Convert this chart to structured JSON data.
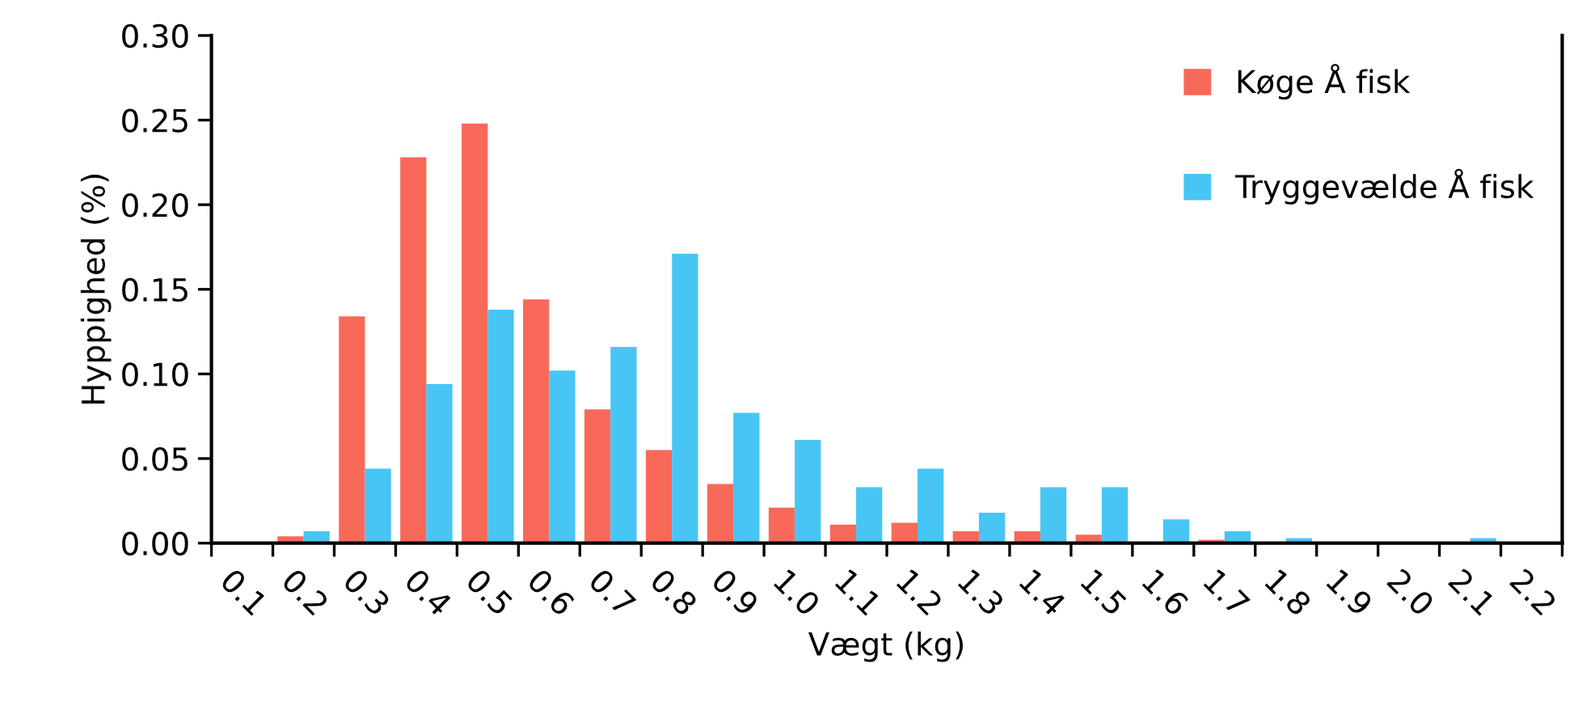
{
  "chart_data": {
    "type": "bar",
    "xlabel": "Vægt (kg)",
    "ylabel": "Hyppighed (%)",
    "categories": [
      "0.1",
      "0.2",
      "0.3",
      "0.4",
      "0.5",
      "0.6",
      "0.7",
      "0.8",
      "0.9",
      "1.0",
      "1.1",
      "1.2",
      "1.3",
      "1.4",
      "1.5",
      "1.6",
      "1.7",
      "1.8",
      "1.9",
      "2.0",
      "2.1",
      "2.2"
    ],
    "series": [
      {
        "name": "Køge Å fisk",
        "color": "#f8695a",
        "values": [
          0,
          0.004,
          0.134,
          0.228,
          0.248,
          0.144,
          0.079,
          0.055,
          0.035,
          0.021,
          0.011,
          0.012,
          0.007,
          0.007,
          0.005,
          null,
          0.002,
          0,
          0,
          0,
          0,
          0
        ]
      },
      {
        "name": "Tryggevælde Å fisk",
        "color": "#47c5f4",
        "values": [
          0,
          0.007,
          0.044,
          0.094,
          0.138,
          0.102,
          0.116,
          0.171,
          0.077,
          0.061,
          0.033,
          0.044,
          0.018,
          0.033,
          0.033,
          0.014,
          0.007,
          0.003,
          0,
          0,
          0.003,
          0
        ]
      }
    ],
    "ylim": [
      0,
      0.3
    ],
    "yticks": [
      {
        "value": 0,
        "label": "0.00"
      },
      {
        "value": 0.05,
        "label": "0.05"
      },
      {
        "value": 0.1,
        "label": "0.10"
      },
      {
        "value": 0.15,
        "label": "0.15"
      },
      {
        "value": 0.2,
        "label": "0.20"
      },
      {
        "value": 0.25,
        "label": "0.25"
      },
      {
        "value": 0.3,
        "label": "0.30"
      }
    ],
    "legend": "top right",
    "grid": false
  }
}
